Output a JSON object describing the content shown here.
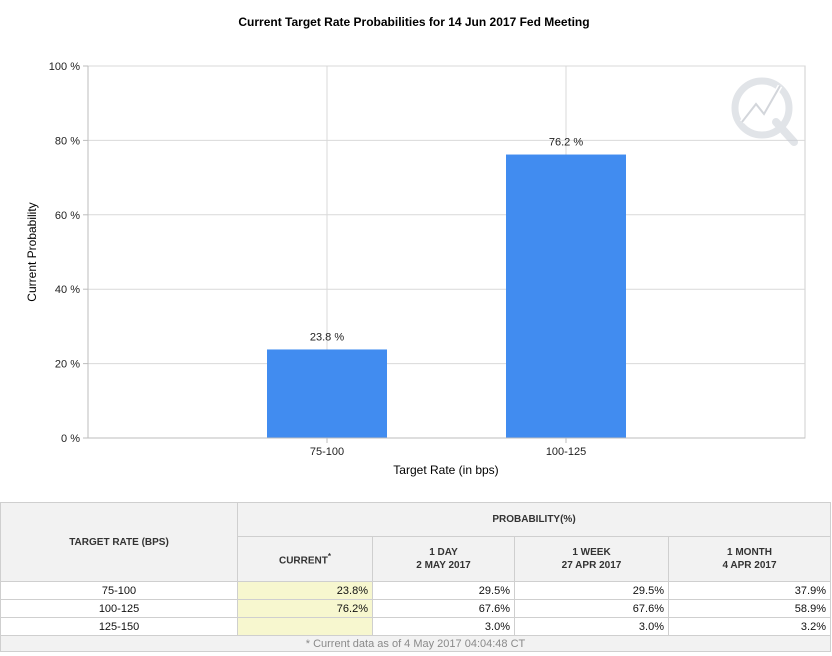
{
  "chart_data": {
    "type": "bar",
    "title": "Current Target Rate Probabilities for 14 Jun 2017 Fed Meeting",
    "xlabel": "Target Rate (in bps)",
    "ylabel": "Current Probability",
    "categories": [
      "75-100",
      "100-125"
    ],
    "values": [
      23.8,
      76.2
    ],
    "data_labels": [
      "23.8 %",
      "76.2 %"
    ],
    "ylim": [
      0,
      100
    ],
    "yticks": [
      0,
      20,
      40,
      60,
      80,
      100
    ],
    "ytick_labels": [
      "0 %",
      "20 %",
      "40 %",
      "60 %",
      "80 %",
      "100 %"
    ],
    "grid": true,
    "bar_color": "#418cf0",
    "grid_color": "#d9d9d9"
  },
  "table": {
    "target_rate_header": "TARGET RATE (BPS)",
    "probability_header": "PROBABILITY(%)",
    "columns": [
      {
        "line1": "CURRENT",
        "marker": "*"
      },
      {
        "line1": "1 DAY",
        "line2": "2 MAY 2017"
      },
      {
        "line1": "1 WEEK",
        "line2": "27 APR 2017"
      },
      {
        "line1": "1 MONTH",
        "line2": "4 APR 2017"
      }
    ],
    "rows": [
      {
        "rate": "75-100",
        "current": "23.8%",
        "day": "29.5%",
        "week": "29.5%",
        "month": "37.9%"
      },
      {
        "rate": "100-125",
        "current": "76.2%",
        "day": "67.6%",
        "week": "67.6%",
        "month": "58.9%"
      },
      {
        "rate": "125-150",
        "current": "",
        "day": "3.0%",
        "week": "3.0%",
        "month": "3.2%"
      }
    ],
    "footnote": "* Current data as of 4 May 2017 04:04:48 CT"
  }
}
